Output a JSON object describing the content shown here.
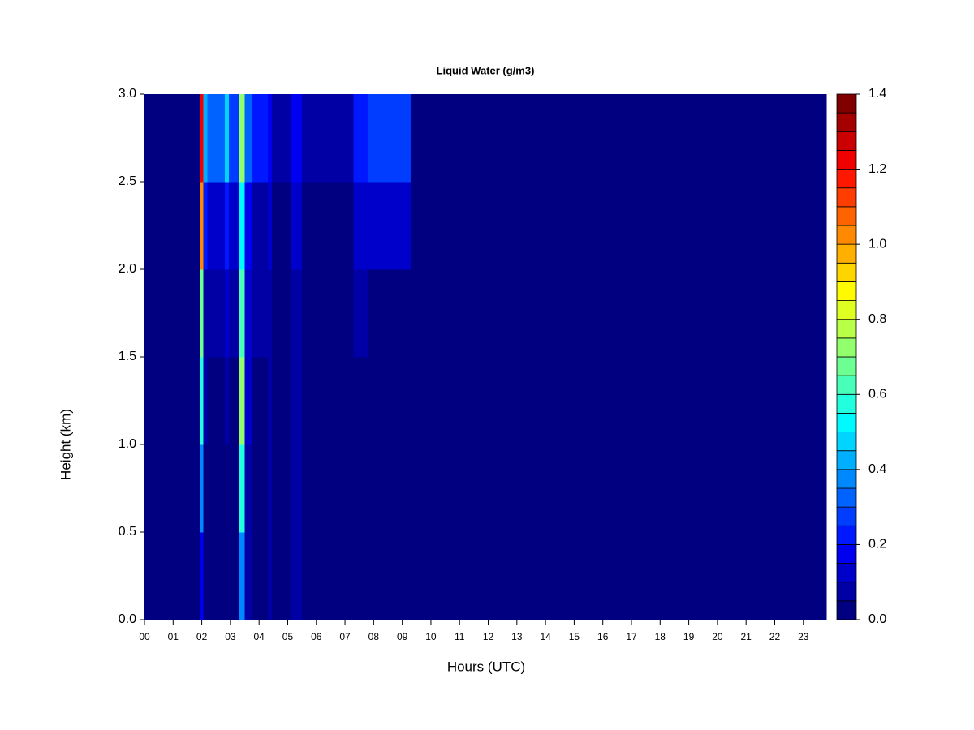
{
  "chart_data": {
    "type": "heatmap",
    "title": "Liquid Water (g/m3)",
    "x_label": "Hours (UTC)",
    "y_label": "Height (km)",
    "xlim": [
      0,
      23.8
    ],
    "ylim": [
      0,
      3.0
    ],
    "xticks": [
      {
        "value": 0,
        "label": "00"
      },
      {
        "value": 1,
        "label": "01"
      },
      {
        "value": 2,
        "label": "02"
      },
      {
        "value": 3,
        "label": "03"
      },
      {
        "value": 4,
        "label": "04"
      },
      {
        "value": 5,
        "label": "05"
      },
      {
        "value": 6,
        "label": "06"
      },
      {
        "value": 7,
        "label": "07"
      },
      {
        "value": 8,
        "label": "08"
      },
      {
        "value": 9,
        "label": "09"
      },
      10,
      11,
      12,
      13,
      14,
      15,
      16,
      17,
      18,
      19,
      20,
      21,
      22,
      23
    ],
    "yticks": [
      {
        "value": 0,
        "label": "0.0"
      },
      {
        "value": 0.5,
        "label": "0.5"
      },
      {
        "value": 1,
        "label": "1.0"
      },
      {
        "value": 1.5,
        "label": "1.5"
      },
      {
        "value": 2,
        "label": "2.0"
      },
      {
        "value": 2.5,
        "label": "2.5"
      },
      {
        "value": 3,
        "label": "3.0"
      }
    ],
    "xbins": [
      0,
      1.95,
      2.05,
      2.2,
      2.8,
      2.95,
      3.3,
      3.5,
      3.75,
      4.3,
      4.45,
      5.1,
      5.5,
      7.3,
      7.8,
      8.3,
      9.3,
      23.8
    ],
    "ybins": [
      0,
      0.5,
      1,
      1.5,
      2,
      2.5,
      3
    ],
    "z": [
      [
        0.02,
        0.15,
        0.02,
        0.02,
        0.02,
        0.02,
        0.35,
        0.05,
        0.02,
        0.05,
        0.02,
        0.05,
        0.02,
        0.02,
        0.02,
        0.02,
        0.02
      ],
      [
        0.02,
        0.35,
        0.03,
        0.02,
        0.03,
        0.02,
        0.55,
        0.08,
        0.03,
        0.06,
        0.02,
        0.06,
        0.02,
        0.02,
        0.02,
        0.02,
        0.02
      ],
      [
        0.02,
        0.55,
        0.05,
        0.03,
        0.05,
        0.03,
        0.7,
        0.1,
        0.04,
        0.06,
        0.02,
        0.07,
        0.02,
        0.03,
        0.02,
        0.02,
        0.02
      ],
      [
        0.02,
        0.65,
        0.08,
        0.05,
        0.1,
        0.05,
        0.6,
        0.1,
        0.05,
        0.08,
        0.02,
        0.08,
        0.02,
        0.05,
        0.04,
        0.03,
        0.02
      ],
      [
        0.02,
        1.0,
        0.2,
        0.1,
        0.2,
        0.1,
        0.5,
        0.15,
        0.08,
        0.1,
        0.03,
        0.1,
        0.03,
        0.1,
        0.12,
        0.1,
        0.02
      ],
      [
        0.02,
        1.2,
        0.4,
        0.3,
        0.45,
        0.25,
        0.7,
        0.3,
        0.2,
        0.15,
        0.05,
        0.15,
        0.05,
        0.2,
        0.25,
        0.25,
        0.02
      ]
    ],
    "colormap": "jet",
    "clim": [
      0,
      1.4
    ],
    "nlevels": 28,
    "cticks": [
      {
        "value": 0,
        "label": "0.0"
      },
      {
        "value": 0.2,
        "label": "0.2"
      },
      {
        "value": 0.4,
        "label": "0.4"
      },
      {
        "value": 0.6,
        "label": "0.6"
      },
      {
        "value": 0.8,
        "label": "0.8"
      },
      {
        "value": 1.0,
        "label": "1.0"
      },
      {
        "value": 1.2,
        "label": "1.2"
      },
      {
        "value": 1.4,
        "label": "1.4"
      }
    ]
  }
}
